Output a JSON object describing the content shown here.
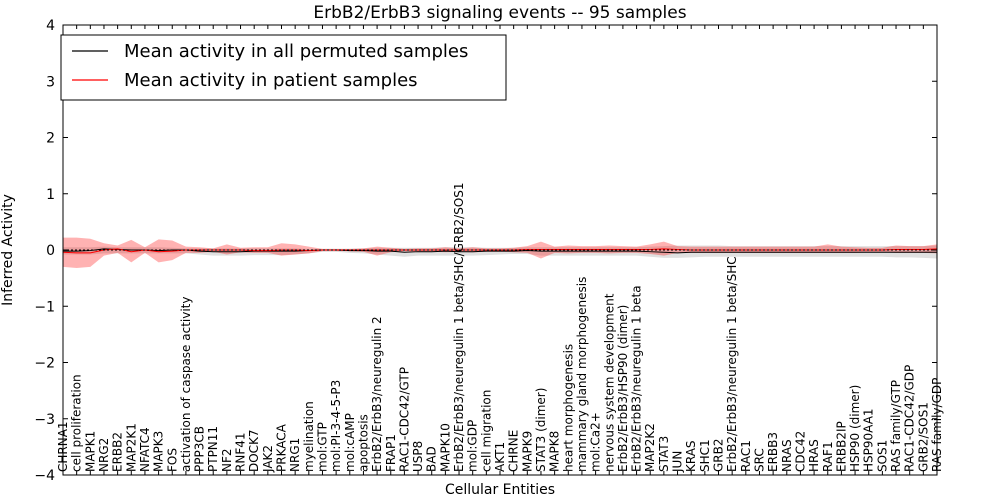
{
  "chart_data": {
    "type": "line",
    "title": "ErbB2/ErbB3 signaling events -- 95 samples",
    "xlabel": "Cellular Entities",
    "ylabel": "Inferred Activity",
    "ylim": [
      -4,
      4
    ],
    "yticks": [
      -4,
      -3,
      -2,
      -1,
      0,
      1,
      2,
      3,
      4
    ],
    "grid": false,
    "legend_position": "top-left",
    "categories": [
      "CHRNA1",
      "cell proliferation",
      "MAPK1",
      "NRG2",
      "ERBB2",
      "MAP2K1",
      "NFATC4",
      "MAPK3",
      "FOS",
      "activation of caspase activity",
      "PPP3CB",
      "PTPN11",
      "NF2",
      "RNF41",
      "DOCK7",
      "JAK2",
      "PRKACA",
      "NRG1",
      "myelination",
      "mol:GTP",
      "mol:PI-3-4-5-P3",
      "mol:cAMP",
      "apoptosis",
      "ErbB2/ErbB3/neuregulin 2",
      "FRAP1",
      "RAC1-CDC42/GTP",
      "USP8",
      "BAD",
      "MAPK10",
      "ErbB2/ErbB3/neuregulin 1 beta/SHC/GRB2/SOS1",
      "mol:GDP",
      "cell migration",
      "AKT1",
      "CHRNE",
      "MAPK9",
      "STAT3 (dimer)",
      "MAPK8",
      "heart morphogenesis",
      "mammary gland morphogenesis",
      "mol:Ca2+",
      "nervous system development",
      "ErbB2/ErbB3/HSP90 (dimer)",
      "ErbB2/ErbB3/neuregulin 1 beta",
      "MAP2K2",
      "STAT3",
      "JUN",
      "KRAS",
      "SHC1",
      "GRB2",
      "ErbB2/ErbB3/neuregulin 1 beta/SHC",
      "RAC1",
      "SRC",
      "ERBB3",
      "NRAS",
      "CDC42",
      "HRAS",
      "RAF1",
      "ERBB2IP",
      "HSP90 (dimer)",
      "HSP90AA1",
      "SOS1",
      "RAS family/GTP",
      "RAC1-CDC42/GDP",
      "GRB2/SOS1",
      "RAS family/GDP"
    ],
    "series": [
      {
        "name": "Mean activity in all permuted samples",
        "color": "#000000",
        "values": [
          -0.02,
          -0.02,
          -0.01,
          0.02,
          0.01,
          0.0,
          0.0,
          -0.01,
          0.0,
          0.0,
          -0.02,
          -0.03,
          -0.03,
          -0.03,
          -0.02,
          -0.02,
          -0.02,
          -0.02,
          -0.01,
          0.0,
          0.0,
          -0.01,
          -0.01,
          -0.02,
          -0.02,
          -0.04,
          -0.03,
          -0.03,
          -0.02,
          -0.03,
          -0.03,
          -0.02,
          -0.02,
          -0.02,
          -0.01,
          -0.02,
          -0.02,
          -0.02,
          -0.02,
          -0.02,
          -0.02,
          -0.02,
          -0.02,
          -0.03,
          -0.04,
          -0.05,
          -0.04,
          -0.04,
          -0.04,
          -0.04,
          -0.04,
          -0.04,
          -0.04,
          -0.04,
          -0.04,
          -0.04,
          -0.04,
          -0.04,
          -0.04,
          -0.04,
          -0.04,
          -0.04,
          -0.04,
          -0.04,
          -0.04
        ],
        "band_upper": [
          0.05,
          0.05,
          0.05,
          0.06,
          0.05,
          0.05,
          0.05,
          0.05,
          0.04,
          0.03,
          0.03,
          0.03,
          0.03,
          0.03,
          0.03,
          0.03,
          0.03,
          0.03,
          0.02,
          0.02,
          0.02,
          0.02,
          0.03,
          0.04,
          0.04,
          0.04,
          0.04,
          0.04,
          0.05,
          0.05,
          0.05,
          0.04,
          0.04,
          0.04,
          0.05,
          0.05,
          0.05,
          0.05,
          0.05,
          0.05,
          0.05,
          0.05,
          0.05,
          0.06,
          0.07,
          0.08,
          0.08,
          0.08,
          0.08,
          0.07,
          0.07,
          0.07,
          0.07,
          0.07,
          0.07,
          0.07,
          0.07,
          0.07,
          0.07,
          0.07,
          0.07,
          0.07,
          0.07,
          0.07,
          0.08
        ],
        "band_lower": [
          -0.08,
          -0.08,
          -0.08,
          -0.06,
          -0.06,
          -0.06,
          -0.06,
          -0.06,
          -0.06,
          -0.06,
          -0.08,
          -0.1,
          -0.1,
          -0.1,
          -0.09,
          -0.09,
          -0.09,
          -0.08,
          -0.06,
          -0.03,
          -0.03,
          -0.05,
          -0.06,
          -0.08,
          -0.1,
          -0.12,
          -0.1,
          -0.1,
          -0.1,
          -0.1,
          -0.1,
          -0.09,
          -0.08,
          -0.07,
          -0.07,
          -0.1,
          -0.1,
          -0.1,
          -0.1,
          -0.1,
          -0.1,
          -0.1,
          -0.1,
          -0.12,
          -0.14,
          -0.14,
          -0.13,
          -0.12,
          -0.12,
          -0.12,
          -0.12,
          -0.12,
          -0.12,
          -0.12,
          -0.12,
          -0.12,
          -0.12,
          -0.12,
          -0.12,
          -0.12,
          -0.12,
          -0.13,
          -0.13,
          -0.14,
          -0.15
        ]
      },
      {
        "name": "Mean activity in patient samples",
        "color": "#ff0000",
        "values": [
          -0.04,
          -0.05,
          -0.05,
          0.0,
          0.02,
          -0.03,
          0.0,
          -0.03,
          -0.02,
          0.0,
          0.0,
          0.0,
          0.0,
          0.0,
          -0.01,
          -0.01,
          0.0,
          0.0,
          -0.01,
          0.0,
          0.0,
          0.0,
          0.0,
          0.0,
          0.0,
          0.0,
          0.0,
          0.0,
          0.0,
          0.0,
          0.0,
          0.0,
          0.0,
          0.0,
          0.01,
          0.01,
          0.01,
          0.01,
          0.01,
          0.01,
          0.01,
          0.01,
          0.01,
          0.01,
          0.02,
          0.01,
          0.0,
          0.0,
          0.0,
          0.0,
          0.0,
          0.0,
          0.0,
          0.0,
          0.0,
          0.0,
          0.0,
          0.0,
          0.0,
          0.0,
          0.0,
          0.01,
          0.01,
          0.01,
          0.02
        ],
        "band_upper": [
          0.22,
          0.22,
          0.2,
          0.12,
          0.08,
          0.18,
          0.05,
          0.19,
          0.17,
          0.06,
          0.05,
          0.03,
          0.1,
          0.04,
          0.05,
          0.05,
          0.12,
          0.1,
          0.06,
          0.02,
          0.02,
          0.02,
          0.03,
          0.06,
          0.04,
          0.02,
          0.03,
          0.03,
          0.05,
          0.03,
          0.05,
          0.03,
          0.03,
          0.04,
          0.07,
          0.15,
          0.06,
          0.08,
          0.07,
          0.07,
          0.08,
          0.07,
          0.06,
          0.1,
          0.15,
          0.07,
          0.06,
          0.06,
          0.06,
          0.06,
          0.06,
          0.06,
          0.06,
          0.06,
          0.06,
          0.06,
          0.1,
          0.06,
          0.05,
          0.04,
          0.04,
          0.08,
          0.07,
          0.07,
          0.1
        ],
        "band_lower": [
          -0.3,
          -0.32,
          -0.3,
          -0.1,
          -0.05,
          -0.22,
          -0.05,
          -0.22,
          -0.18,
          -0.05,
          -0.05,
          -0.03,
          -0.08,
          -0.04,
          -0.05,
          -0.05,
          -0.1,
          -0.08,
          -0.06,
          -0.02,
          -0.02,
          -0.02,
          -0.03,
          -0.1,
          -0.04,
          -0.02,
          -0.03,
          -0.03,
          -0.04,
          -0.03,
          -0.04,
          -0.03,
          -0.03,
          -0.04,
          -0.05,
          -0.15,
          -0.05,
          -0.06,
          -0.05,
          -0.05,
          -0.06,
          -0.05,
          -0.05,
          -0.07,
          -0.1,
          -0.05,
          -0.05,
          -0.05,
          -0.05,
          -0.05,
          -0.05,
          -0.05,
          -0.05,
          -0.05,
          -0.05,
          -0.05,
          -0.05,
          -0.05,
          -0.05,
          -0.04,
          -0.04,
          -0.05,
          -0.05,
          -0.05,
          -0.06
        ]
      }
    ]
  }
}
